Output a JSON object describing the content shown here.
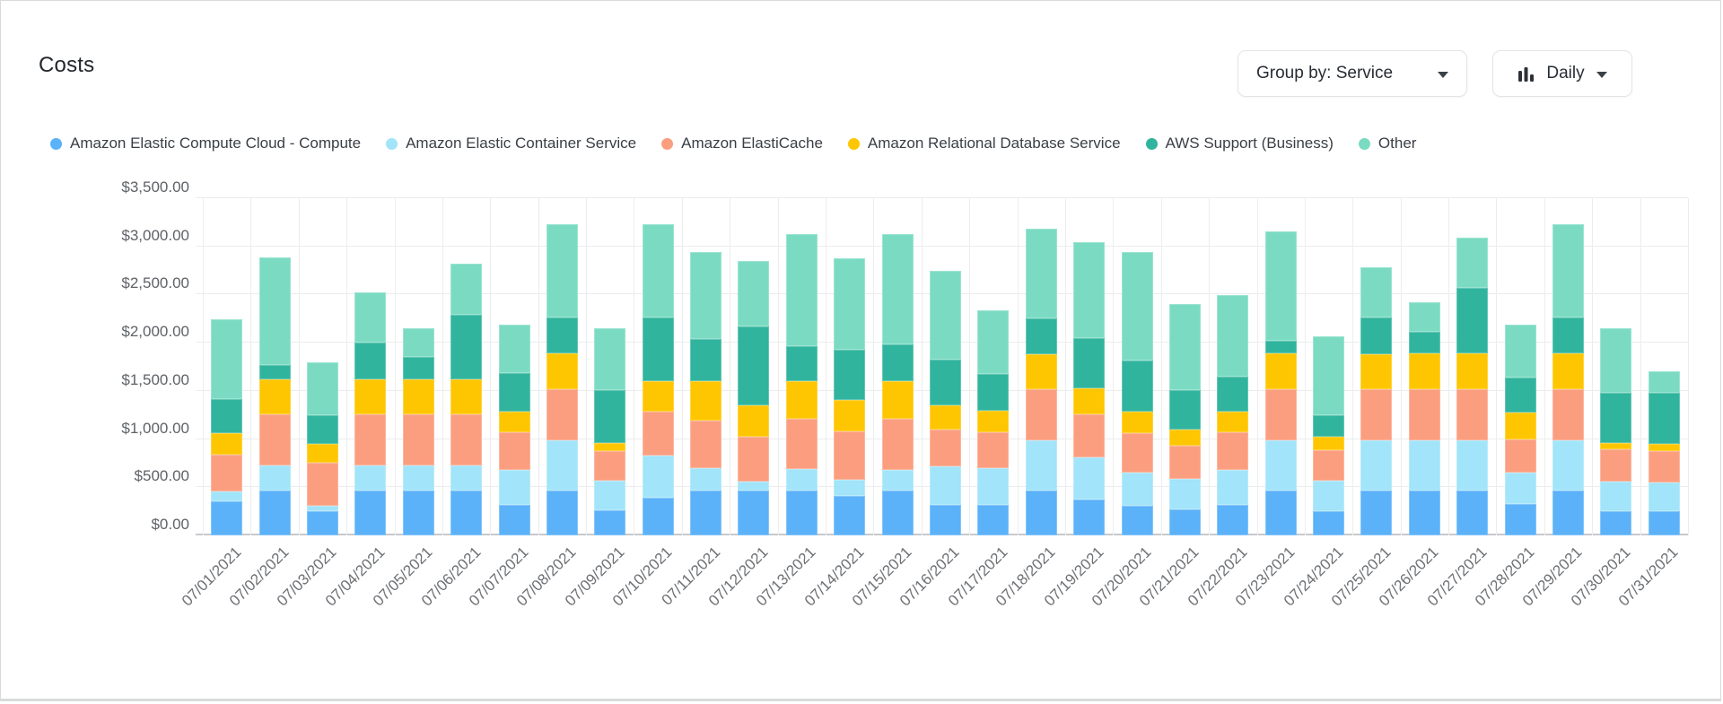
{
  "header": {
    "title": "Costs"
  },
  "toolbar": {
    "group_by_label": "Group by: Service",
    "granularity_label": "Daily"
  },
  "chart_data": {
    "type": "bar",
    "stacked": true,
    "title": "Costs",
    "xlabel": "",
    "ylabel": "",
    "ylim": [
      0,
      3500
    ],
    "ytick_step": 500,
    "y_ticks": [
      "$0.00",
      "$500.00",
      "$1,000.00",
      "$1,500.00",
      "$2,000.00",
      "$2,500.00",
      "$3,000.00",
      "$3,500.00"
    ],
    "grid": true,
    "legend_position": "top",
    "categories": [
      "07/01/2021",
      "07/02/2021",
      "07/03/2021",
      "07/04/2021",
      "07/05/2021",
      "07/06/2021",
      "07/07/2021",
      "07/08/2021",
      "07/09/2021",
      "07/10/2021",
      "07/11/2021",
      "07/12/2021",
      "07/13/2021",
      "07/14/2021",
      "07/15/2021",
      "07/16/2021",
      "07/17/2021",
      "07/18/2021",
      "07/19/2021",
      "07/20/2021",
      "07/21/2021",
      "07/22/2021",
      "07/23/2021",
      "07/24/2021",
      "07/25/2021",
      "07/26/2021",
      "07/27/2021",
      "07/28/2021",
      "07/29/2021",
      "07/30/2021",
      "07/31/2021"
    ],
    "series": [
      {
        "name": "Amazon Elastic Compute Cloud - Compute",
        "color": "#5BB2F8",
        "values": [
          357,
          463,
          255,
          463,
          463,
          463,
          312,
          463,
          265,
          391,
          463,
          463,
          463,
          407,
          463,
          318,
          312,
          463,
          375,
          306,
          274,
          312,
          463,
          249,
          463,
          463,
          463,
          328,
          463,
          255,
          249
        ]
      },
      {
        "name": "Amazon Elastic Container Service",
        "color": "#A2E4F9",
        "values": [
          103,
          259,
          50,
          259,
          259,
          259,
          363,
          527,
          299,
          441,
          234,
          95,
          227,
          173,
          221,
          398,
          385,
          527,
          435,
          346,
          315,
          363,
          527,
          315,
          527,
          527,
          527,
          324,
          527,
          303,
          299
        ]
      },
      {
        "name": "Amazon ElastiCache",
        "color": "#FB9E7F",
        "values": [
          382,
          536,
          450,
          536,
          536,
          536,
          394,
          526,
          315,
          451,
          498,
          463,
          520,
          504,
          523,
          378,
          372,
          526,
          448,
          410,
          344,
          394,
          526,
          322,
          526,
          526,
          526,
          344,
          526,
          337,
          331
        ]
      },
      {
        "name": "Amazon Relational Database Service",
        "color": "#FEC600",
        "values": [
          224,
          362,
          195,
          362,
          362,
          362,
          220,
          372,
          79,
          315,
          403,
          325,
          388,
          325,
          391,
          258,
          226,
          366,
          268,
          221,
          167,
          214,
          372,
          135,
          366,
          372,
          372,
          277,
          372,
          63,
          70
        ]
      },
      {
        "name": "AWS Support (Business)",
        "color": "#31B49D",
        "values": [
          354,
          148,
          302,
          380,
          237,
          668,
          394,
          378,
          552,
          662,
          438,
          826,
          369,
          520,
          385,
          473,
          379,
          368,
          526,
          536,
          410,
          369,
          133,
          230,
          378,
          227,
          678,
          369,
          372,
          520,
          529
        ]
      },
      {
        "name": "Other",
        "color": "#7BDBC2",
        "values": [
          827,
          1119,
          549,
          520,
          290,
          530,
          505,
          968,
          640,
          974,
          902,
          678,
          1157,
          946,
          1141,
          924,
          662,
          931,
          996,
          1119,
          889,
          841,
          1135,
          820,
          526,
          303,
          526,
          546,
          974,
          672,
          227
        ]
      }
    ]
  }
}
